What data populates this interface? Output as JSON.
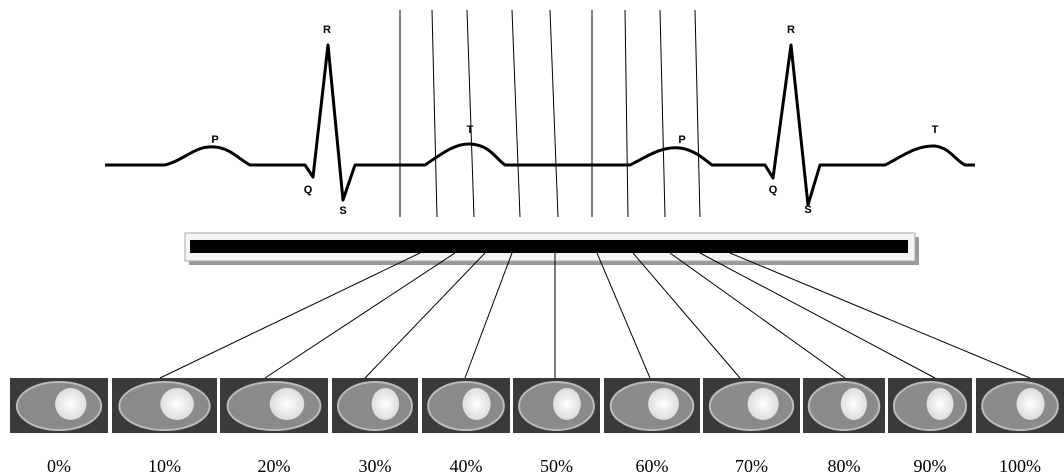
{
  "ecg": {
    "waves": [
      "P",
      "Q",
      "R",
      "S",
      "T",
      "P",
      "Q",
      "R",
      "S",
      "T"
    ]
  },
  "phases": [
    "0%",
    "10%",
    "20%",
    "30%",
    "40%",
    "50%",
    "60%",
    "70%",
    "80%",
    "90%",
    "100%"
  ]
}
